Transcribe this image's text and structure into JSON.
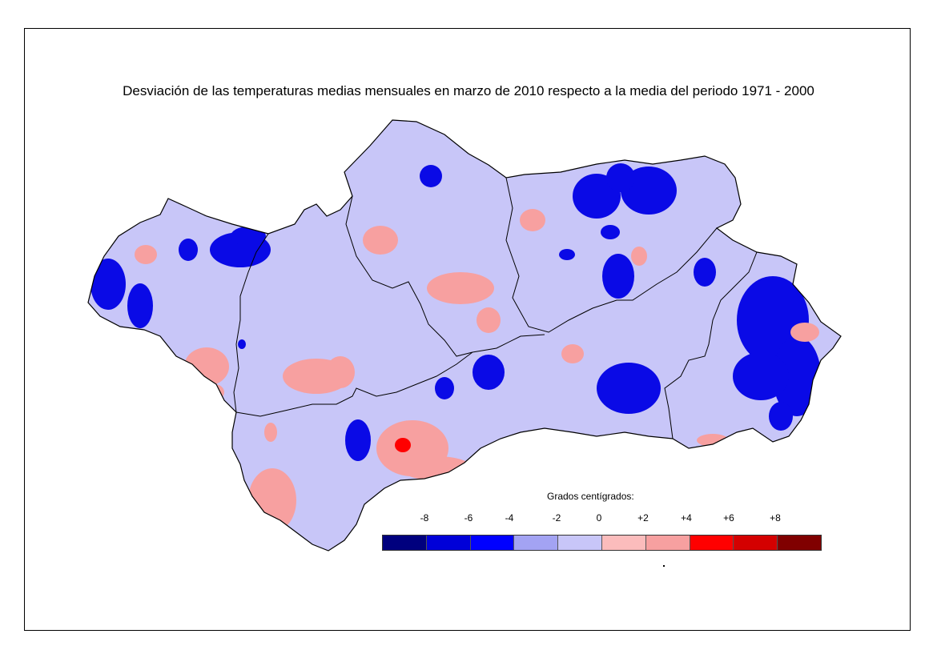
{
  "map": {
    "title": "Desviación de las temperaturas medias mensuales en marzo de 2010 respecto a la media del periodo 1971 - 2000",
    "region_fill": "#c8c6f8",
    "legend": {
      "title": "Grados centígrados:",
      "tick_labels": [
        "-8",
        "-6",
        "-4",
        "-2",
        "0",
        "+2",
        "+4",
        "+6",
        "+8"
      ],
      "colors": [
        "#00007e",
        "#0000d8",
        "#0000ff",
        "#a3a3f3",
        "#c8c6f8",
        "#fbbcbc",
        "#f7a0a0",
        "#ff0000",
        "#d40000",
        "#800000"
      ]
    }
  }
}
